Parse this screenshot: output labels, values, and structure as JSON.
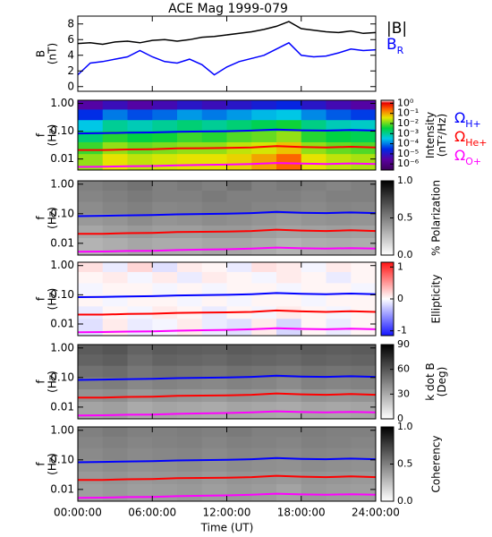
{
  "chart_data": [
    {
      "type": "line",
      "title": "ACE Mag 1999-079",
      "ylabel": [
        "B",
        "(nT)"
      ],
      "x": [
        0,
        1,
        2,
        3,
        4,
        5,
        6,
        7,
        8,
        9,
        10,
        11,
        12,
        13,
        14,
        15,
        16,
        17,
        18,
        19,
        20,
        21,
        22,
        23,
        24
      ],
      "ylim": [
        -0.6,
        9
      ],
      "yticks": [
        0,
        2,
        4,
        6,
        8
      ],
      "series": [
        {
          "name": "|B|",
          "color": "#000000",
          "values": [
            5.5,
            5.6,
            5.4,
            5.7,
            5.8,
            5.6,
            5.9,
            6.0,
            5.8,
            6.0,
            6.3,
            6.4,
            6.6,
            6.8,
            7.0,
            7.3,
            7.7,
            8.3,
            7.4,
            7.2,
            7.0,
            6.9,
            7.1,
            6.8,
            6.9
          ]
        },
        {
          "name": "B",
          "name_sub": "R",
          "color": "#0000ff",
          "values": [
            1.5,
            3.0,
            3.2,
            3.5,
            3.8,
            4.6,
            3.8,
            3.2,
            3.0,
            3.5,
            2.8,
            1.5,
            2.5,
            3.2,
            3.6,
            4.0,
            4.8,
            5.6,
            4.0,
            3.8,
            3.9,
            4.3,
            4.8,
            4.6,
            4.7
          ]
        }
      ]
    },
    {
      "type": "spectrogram",
      "ylabel": [
        "f",
        "(Hz)"
      ],
      "ylog": true,
      "ylim": [
        0.004,
        1.3
      ],
      "yticks": [
        {
          "value": 1,
          "label": "1.00"
        },
        {
          "value": 0.1,
          "label": "0.10"
        },
        0.01
      ],
      "xbins": [
        0,
        2,
        4,
        6,
        8,
        10,
        12,
        14,
        16,
        18,
        20,
        22,
        24
      ],
      "ybins": [
        1.3,
        0.6,
        0.25,
        0.1,
        0.04,
        0.015,
        0.004
      ],
      "colormap": "rainbow",
      "clim": [
        -6.6,
        0.3
      ],
      "cticks": [
        {
          "value": 0,
          "label": "10⁰"
        },
        {
          "value": -1,
          "label": "10⁻¹"
        },
        {
          "value": -2,
          "label": "10⁻²"
        },
        {
          "value": -3,
          "label": "10⁻³"
        },
        {
          "value": -4,
          "label": "10⁻⁴"
        },
        {
          "value": -5,
          "label": "10⁻⁵"
        },
        {
          "value": -6,
          "label": "10⁻⁶"
        }
      ],
      "clabel": [
        "Intensity",
        "(nT²/Hz)"
      ],
      "z": [
        [
          -5.5,
          -5.2,
          -5.5,
          -5.3,
          -5.0,
          -5.2,
          -5.0,
          -4.8,
          -4.6,
          -5.0,
          -5.3,
          -5.5
        ],
        [
          -4.5,
          -4.0,
          -4.3,
          -4.1,
          -3.8,
          -4.0,
          -3.8,
          -3.6,
          -3.5,
          -3.9,
          -4.2,
          -4.4
        ],
        [
          -3.5,
          -3.0,
          -3.2,
          -3.0,
          -2.8,
          -3.0,
          -2.8,
          -2.6,
          -2.4,
          -2.9,
          -3.2,
          -3.3
        ],
        [
          -2.8,
          -2.3,
          -2.5,
          -2.4,
          -2.2,
          -2.3,
          -2.1,
          -2.0,
          -1.8,
          -2.3,
          -2.5,
          -2.6
        ],
        [
          -2.2,
          -1.8,
          -2.0,
          -1.9,
          -1.8,
          -1.8,
          -1.6,
          -1.5,
          -1.2,
          -1.8,
          -2.0,
          -2.1
        ],
        [
          -1.8,
          -1.4,
          -1.6,
          -1.5,
          -1.4,
          -1.4,
          -1.3,
          -1.0,
          -0.6,
          -1.4,
          -1.6,
          -1.7
        ]
      ],
      "x": [
        0,
        2,
        4,
        6,
        8,
        10,
        12,
        14,
        16,
        18,
        20,
        22,
        24
      ],
      "series": [
        {
          "name": "Ω",
          "name_sub": "H+",
          "color": "#0000ff",
          "values": [
            0.083,
            0.085,
            0.088,
            0.09,
            0.095,
            0.098,
            0.1,
            0.105,
            0.115,
            0.108,
            0.105,
            0.11,
            0.105
          ]
        },
        {
          "name": "Ω",
          "name_sub": "He+",
          "color": "#ff0000",
          "values": [
            0.021,
            0.021,
            0.022,
            0.0225,
            0.024,
            0.0245,
            0.025,
            0.026,
            0.029,
            0.027,
            0.026,
            0.0275,
            0.026
          ]
        },
        {
          "name": "Ω",
          "name_sub": "O+",
          "color": "#ff00ff",
          "values": [
            0.0052,
            0.0053,
            0.0055,
            0.0056,
            0.0059,
            0.0061,
            0.0063,
            0.0066,
            0.0072,
            0.0068,
            0.0066,
            0.0069,
            0.0066
          ]
        }
      ]
    },
    {
      "type": "spectrogram",
      "ylabel": [
        "f",
        "(Hz)"
      ],
      "ylog": true,
      "ylim": [
        0.004,
        1.3
      ],
      "yticks": [
        {
          "value": 1,
          "label": "1.00"
        },
        {
          "value": 0.1,
          "label": "0.10"
        },
        0.01
      ],
      "xbins": [
        0,
        2,
        4,
        6,
        8,
        10,
        12,
        14,
        16,
        18,
        20,
        22,
        24
      ],
      "ybins": [
        1.3,
        0.6,
        0.25,
        0.1,
        0.04,
        0.015,
        0.004
      ],
      "colormap": "gray",
      "clim": [
        0,
        1
      ],
      "cticks": [
        {
          "value": 1,
          "label": "1.0"
        },
        0.5,
        {
          "value": 0,
          "label": "0.0"
        }
      ],
      "clabel": [
        "% Polarization"
      ],
      "z": [
        [
          0.5,
          0.52,
          0.55,
          0.5,
          0.52,
          0.5,
          0.55,
          0.5,
          0.52,
          0.5,
          0.48,
          0.5
        ],
        [
          0.48,
          0.5,
          0.52,
          0.5,
          0.5,
          0.52,
          0.5,
          0.5,
          0.5,
          0.48,
          0.5,
          0.5
        ],
        [
          0.45,
          0.48,
          0.5,
          0.47,
          0.48,
          0.5,
          0.5,
          0.48,
          0.47,
          0.46,
          0.48,
          0.47
        ],
        [
          0.4,
          0.42,
          0.45,
          0.42,
          0.43,
          0.45,
          0.44,
          0.42,
          0.4,
          0.42,
          0.43,
          0.42
        ],
        [
          0.35,
          0.38,
          0.4,
          0.38,
          0.38,
          0.4,
          0.4,
          0.38,
          0.36,
          0.37,
          0.38,
          0.37
        ],
        [
          0.3,
          0.32,
          0.35,
          0.33,
          0.33,
          0.35,
          0.35,
          0.33,
          0.3,
          0.32,
          0.33,
          0.32
        ]
      ],
      "x": [
        0,
        2,
        4,
        6,
        8,
        10,
        12,
        14,
        16,
        18,
        20,
        22,
        24
      ],
      "series": [
        {
          "color": "#0000ff",
          "values": [
            0.083,
            0.085,
            0.088,
            0.09,
            0.095,
            0.098,
            0.1,
            0.105,
            0.115,
            0.108,
            0.105,
            0.11,
            0.105
          ]
        },
        {
          "color": "#ff0000",
          "values": [
            0.021,
            0.021,
            0.022,
            0.0225,
            0.024,
            0.0245,
            0.025,
            0.026,
            0.029,
            0.027,
            0.026,
            0.0275,
            0.026
          ]
        },
        {
          "color": "#ff00ff",
          "values": [
            0.0052,
            0.0053,
            0.0055,
            0.0056,
            0.0059,
            0.0061,
            0.0063,
            0.0066,
            0.0072,
            0.0068,
            0.0066,
            0.0069,
            0.0066
          ]
        }
      ]
    },
    {
      "type": "spectrogram",
      "ylabel": [
        "f",
        "(Hz)"
      ],
      "ylog": true,
      "ylim": [
        0.004,
        1.3
      ],
      "yticks": [
        {
          "value": 1,
          "label": "1.00"
        },
        {
          "value": 0.1,
          "label": "0.10"
        },
        0.01
      ],
      "xbins": [
        0,
        2,
        4,
        6,
        8,
        10,
        12,
        14,
        16,
        18,
        20,
        22,
        24
      ],
      "ybins": [
        1.3,
        0.6,
        0.25,
        0.1,
        0.04,
        0.015,
        0.004
      ],
      "colormap": "bwr",
      "clim": [
        -1.15,
        1.15
      ],
      "cticks": [
        1,
        0,
        -1
      ],
      "clabel": [
        "Ellipticity"
      ],
      "z": [
        [
          0.15,
          -0.1,
          0.2,
          -0.15,
          0.1,
          0.05,
          -0.1,
          0.15,
          0.1,
          -0.05,
          0.1,
          0.05
        ],
        [
          0.05,
          0.1,
          -0.05,
          0.1,
          -0.1,
          0.1,
          0.05,
          -0.05,
          0.1,
          0.05,
          -0.1,
          0.05
        ],
        [
          -0.05,
          0.05,
          0.05,
          -0.05,
          0.05,
          -0.05,
          0.05,
          0.05,
          -0.05,
          0.05,
          0.05,
          -0.05
        ],
        [
          0.05,
          -0.05,
          0.05,
          0.05,
          -0.05,
          0.05,
          -0.05,
          0.05,
          0.05,
          -0.05,
          0.05,
          0.05
        ],
        [
          -0.1,
          0.05,
          -0.05,
          0.1,
          0.05,
          -0.1,
          0.05,
          -0.05,
          0.1,
          0.05,
          -0.05,
          0.05
        ],
        [
          -0.15,
          0.1,
          -0.1,
          -0.05,
          0.1,
          -0.1,
          -0.15,
          0.1,
          -0.2,
          0.05,
          -0.1,
          0.05
        ]
      ],
      "x": [
        0,
        2,
        4,
        6,
        8,
        10,
        12,
        14,
        16,
        18,
        20,
        22,
        24
      ],
      "series": [
        {
          "color": "#0000ff",
          "values": [
            0.083,
            0.085,
            0.088,
            0.09,
            0.095,
            0.098,
            0.1,
            0.105,
            0.115,
            0.108,
            0.105,
            0.11,
            0.105
          ]
        },
        {
          "color": "#ff0000",
          "values": [
            0.021,
            0.021,
            0.022,
            0.0225,
            0.024,
            0.0245,
            0.025,
            0.026,
            0.029,
            0.027,
            0.026,
            0.0275,
            0.026
          ]
        },
        {
          "color": "#ff00ff",
          "values": [
            0.0052,
            0.0053,
            0.0055,
            0.0056,
            0.0059,
            0.0061,
            0.0063,
            0.0066,
            0.0072,
            0.0068,
            0.0066,
            0.0069,
            0.0066
          ]
        }
      ]
    },
    {
      "type": "spectrogram",
      "ylabel": [
        "f",
        "(Hz)"
      ],
      "ylog": true,
      "ylim": [
        0.004,
        1.3
      ],
      "yticks": [
        {
          "value": 1,
          "label": "1.00"
        },
        {
          "value": 0.1,
          "label": "0.10"
        },
        0.01
      ],
      "xbins": [
        0,
        2,
        4,
        6,
        8,
        10,
        12,
        14,
        16,
        18,
        20,
        22,
        24
      ],
      "ybins": [
        1.3,
        0.6,
        0.25,
        0.1,
        0.04,
        0.015,
        0.004
      ],
      "colormap": "gray",
      "clim": [
        0,
        90
      ],
      "cticks": [
        90,
        60,
        30,
        0
      ],
      "clabel": [
        "k dot B",
        "(Deg)"
      ],
      "z": [
        [
          58,
          60,
          55,
          58,
          57,
          56,
          58,
          57,
          56,
          58,
          57,
          58
        ],
        [
          55,
          57,
          52,
          55,
          54,
          53,
          55,
          54,
          53,
          55,
          54,
          55
        ],
        [
          50,
          52,
          48,
          50,
          49,
          48,
          50,
          49,
          48,
          50,
          49,
          50
        ],
        [
          44,
          46,
          42,
          44,
          43,
          42,
          44,
          43,
          41,
          44,
          43,
          44
        ],
        [
          38,
          40,
          36,
          38,
          37,
          36,
          38,
          37,
          35,
          38,
          37,
          38
        ],
        [
          32,
          34,
          30,
          32,
          31,
          30,
          32,
          31,
          30,
          32,
          31,
          32
        ]
      ],
      "x": [
        0,
        2,
        4,
        6,
        8,
        10,
        12,
        14,
        16,
        18,
        20,
        22,
        24
      ],
      "series": [
        {
          "color": "#0000ff",
          "values": [
            0.083,
            0.085,
            0.088,
            0.09,
            0.095,
            0.098,
            0.1,
            0.105,
            0.115,
            0.108,
            0.105,
            0.11,
            0.105
          ]
        },
        {
          "color": "#ff0000",
          "values": [
            0.021,
            0.021,
            0.022,
            0.0225,
            0.024,
            0.0245,
            0.025,
            0.026,
            0.029,
            0.027,
            0.026,
            0.0275,
            0.026
          ]
        },
        {
          "color": "#ff00ff",
          "values": [
            0.0052,
            0.0053,
            0.0055,
            0.0056,
            0.0059,
            0.0061,
            0.0063,
            0.0066,
            0.0072,
            0.0068,
            0.0066,
            0.0069,
            0.0066
          ]
        }
      ]
    },
    {
      "type": "spectrogram",
      "ylabel": [
        "f",
        "(Hz)"
      ],
      "ylog": true,
      "ylim": [
        0.004,
        1.3
      ],
      "yticks": [
        {
          "value": 1,
          "label": "1.00"
        },
        {
          "value": 0.1,
          "label": "0.10"
        },
        0.01
      ],
      "xbins": [
        0,
        2,
        4,
        6,
        8,
        10,
        12,
        14,
        16,
        18,
        20,
        22,
        24
      ],
      "ybins": [
        1.3,
        0.6,
        0.25,
        0.1,
        0.04,
        0.015,
        0.004
      ],
      "colormap": "gray",
      "clim": [
        0,
        1
      ],
      "cticks": [
        {
          "value": 1,
          "label": "1.0"
        },
        0.5,
        {
          "value": 0,
          "label": "0.0"
        }
      ],
      "clabel": [
        "Coherency"
      ],
      "z": [
        [
          0.5,
          0.52,
          0.5,
          0.5,
          0.51,
          0.5,
          0.52,
          0.5,
          0.5,
          0.51,
          0.5,
          0.5
        ],
        [
          0.48,
          0.5,
          0.48,
          0.49,
          0.5,
          0.48,
          0.5,
          0.49,
          0.48,
          0.5,
          0.49,
          0.48
        ],
        [
          0.46,
          0.48,
          0.46,
          0.47,
          0.48,
          0.46,
          0.48,
          0.47,
          0.46,
          0.48,
          0.47,
          0.46
        ],
        [
          0.43,
          0.45,
          0.43,
          0.44,
          0.45,
          0.43,
          0.45,
          0.44,
          0.43,
          0.45,
          0.44,
          0.43
        ],
        [
          0.4,
          0.42,
          0.4,
          0.41,
          0.42,
          0.4,
          0.42,
          0.41,
          0.4,
          0.42,
          0.41,
          0.4
        ],
        [
          0.38,
          0.4,
          0.38,
          0.39,
          0.4,
          0.38,
          0.4,
          0.39,
          0.36,
          0.4,
          0.39,
          0.38
        ]
      ],
      "x": [
        0,
        2,
        4,
        6,
        8,
        10,
        12,
        14,
        16,
        18,
        20,
        22,
        24
      ],
      "series": [
        {
          "color": "#0000ff",
          "values": [
            0.083,
            0.085,
            0.088,
            0.09,
            0.095,
            0.098,
            0.1,
            0.105,
            0.115,
            0.108,
            0.105,
            0.11,
            0.105
          ]
        },
        {
          "color": "#ff0000",
          "values": [
            0.021,
            0.021,
            0.022,
            0.0225,
            0.024,
            0.0245,
            0.025,
            0.026,
            0.029,
            0.027,
            0.026,
            0.0275,
            0.026
          ]
        },
        {
          "color": "#ff00ff",
          "values": [
            0.0052,
            0.0053,
            0.0055,
            0.0056,
            0.0059,
            0.0061,
            0.0063,
            0.0066,
            0.0072,
            0.0068,
            0.0066,
            0.0069,
            0.0066
          ]
        }
      ],
      "xlabel": "Time (UT)",
      "xlim": [
        0,
        24
      ],
      "xticks": [
        {
          "value": 0,
          "label": "00:00:00"
        },
        {
          "value": 6,
          "label": "06:00:00"
        },
        {
          "value": 12,
          "label": "12:00:00"
        },
        {
          "value": 18,
          "label": "18:00:00"
        },
        {
          "value": 24,
          "label": "24:00:00"
        }
      ]
    }
  ]
}
